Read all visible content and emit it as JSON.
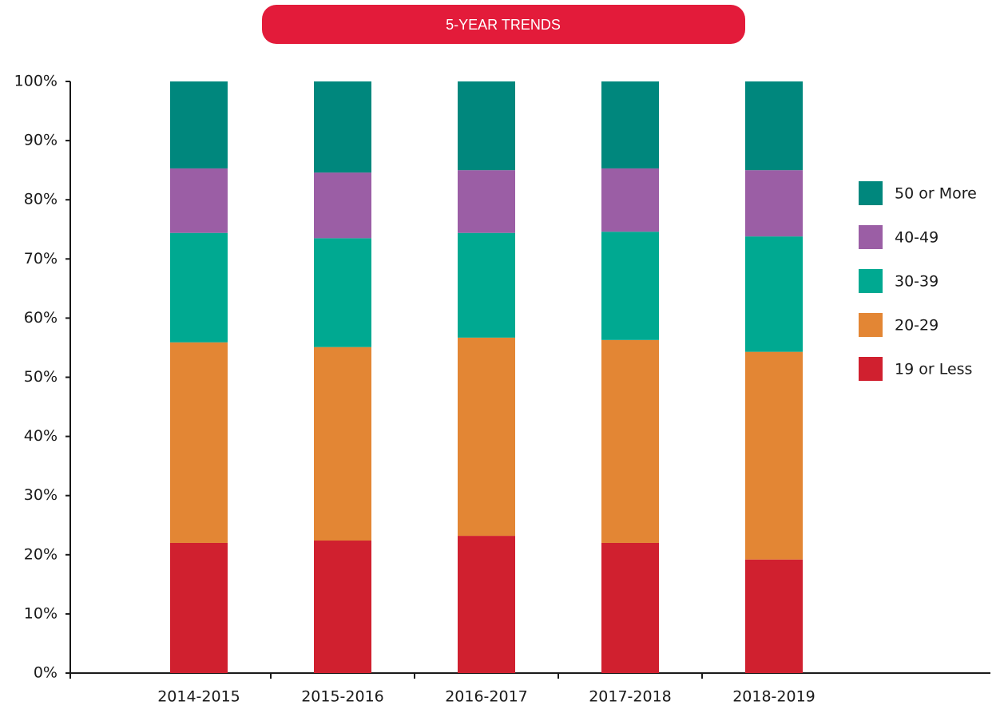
{
  "chart_data": {
    "type": "stacked_bar",
    "title": "5-YEAR TRENDS",
    "categories": [
      "2014-2015",
      "2015-2016",
      "2016-2017",
      "2017-2018",
      "2018-2019"
    ],
    "series": [
      {
        "name": "19 or Less",
        "color": "#d0202f",
        "values": [
          22.0,
          22.4,
          23.2,
          22.0,
          19.2
        ]
      },
      {
        "name": "20-29",
        "color": "#e38634",
        "values": [
          33.9,
          32.7,
          33.5,
          34.3,
          35.1
        ]
      },
      {
        "name": "30-39",
        "color": "#00a991",
        "values": [
          18.5,
          18.4,
          17.7,
          18.3,
          19.5
        ]
      },
      {
        "name": "40-49",
        "color": "#9b5ea5",
        "values": [
          10.9,
          11.1,
          10.6,
          10.7,
          11.2
        ]
      },
      {
        "name": "50 or More",
        "color": "#00877d",
        "values": [
          14.7,
          15.4,
          15.0,
          14.7,
          15.0
        ]
      }
    ],
    "ylim": [
      0,
      100
    ],
    "yticks": [
      {
        "value": 0,
        "label": "0%"
      },
      {
        "value": 10,
        "label": "10%"
      },
      {
        "value": 20,
        "label": "20%"
      },
      {
        "value": 30,
        "label": "30%"
      },
      {
        "value": 40,
        "label": "40%"
      },
      {
        "value": 50,
        "label": "50%"
      },
      {
        "value": 60,
        "label": "60%"
      },
      {
        "value": 70,
        "label": "70%"
      },
      {
        "value": 80,
        "label": "80%"
      },
      {
        "value": 90,
        "label": "90%"
      },
      {
        "value": 100,
        "label": "100%"
      }
    ],
    "legend": "right"
  }
}
